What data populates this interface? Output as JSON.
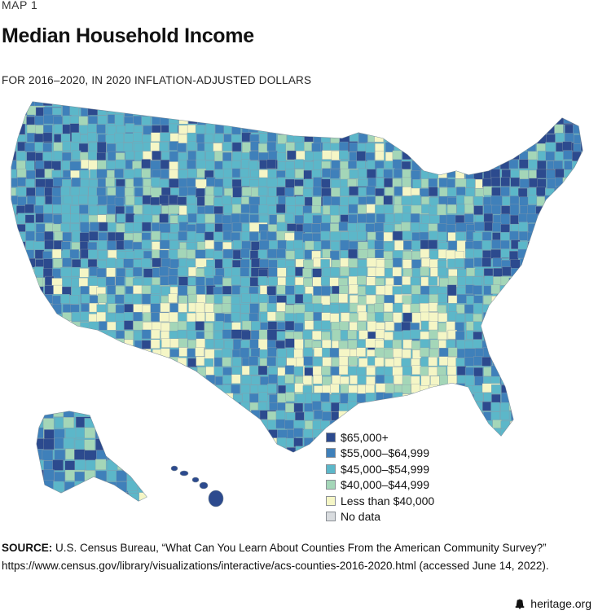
{
  "kicker": "MAP 1",
  "title": "Median Household Income",
  "subtitle": "FOR 2016–2020, IN 2020 INFLATION-ADJUSTED DOLLARS",
  "legend": {
    "items": [
      {
        "label": "$65,000+",
        "color": "#2c4a8e"
      },
      {
        "label": "$55,000–$64,999",
        "color": "#3f80ba"
      },
      {
        "label": "$45,000–$54,999",
        "color": "#5cb7c9"
      },
      {
        "label": "$40,000–$44,999",
        "color": "#a4d6b8"
      },
      {
        "label": "Less than $40,000",
        "color": "#f5f6c6"
      },
      {
        "label": "No data",
        "color": "#d9dcdf"
      }
    ]
  },
  "source": {
    "label": "SOURCE:",
    "line1": "U.S. Census Bureau, “What Can You Learn About Counties From the American Community Survey?”",
    "line2": "https://www.census.gov/library/visualizations/interactive/acs-counties-2016-2020.html (accessed June 14, 2022)."
  },
  "brand": "heritage.org",
  "map_colors": {
    "high": "#2c4a8e",
    "upper": "#3f80ba",
    "mid": "#5cb7c9",
    "lower": "#a4d6b8",
    "low": "#f5f6c6",
    "none": "#d9dcdf",
    "border": "#8a9aa8"
  }
}
